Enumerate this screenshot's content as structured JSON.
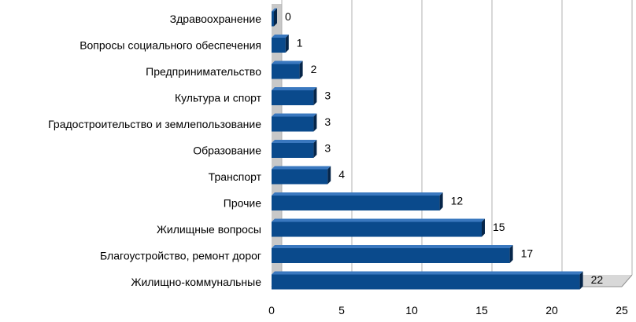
{
  "chart_data": {
    "type": "bar",
    "orientation": "horizontal",
    "categories": [
      "Здравоохранение",
      "Вопросы социального обеспечения",
      "Предпринимательство",
      "Культура и спорт",
      "Градостроительство и землепользование",
      "Образование",
      "Транспорт",
      "Прочие",
      "Жилищные вопросы",
      "Благоустройство, ремонт дорог",
      "Жилищно-коммунальные"
    ],
    "values": [
      0,
      1,
      2,
      3,
      3,
      3,
      4,
      12,
      15,
      17,
      22
    ],
    "xlim": [
      0,
      25
    ],
    "xticks": [
      0,
      5,
      10,
      15,
      20,
      25
    ],
    "grid": true,
    "legend": "none",
    "colors": {
      "bar_front": "#0a4a8c",
      "bar_top": "#3a78bf",
      "bar_side": "#06264a",
      "grid": "#b0b0b0",
      "wall": "#c8c8c8"
    }
  }
}
